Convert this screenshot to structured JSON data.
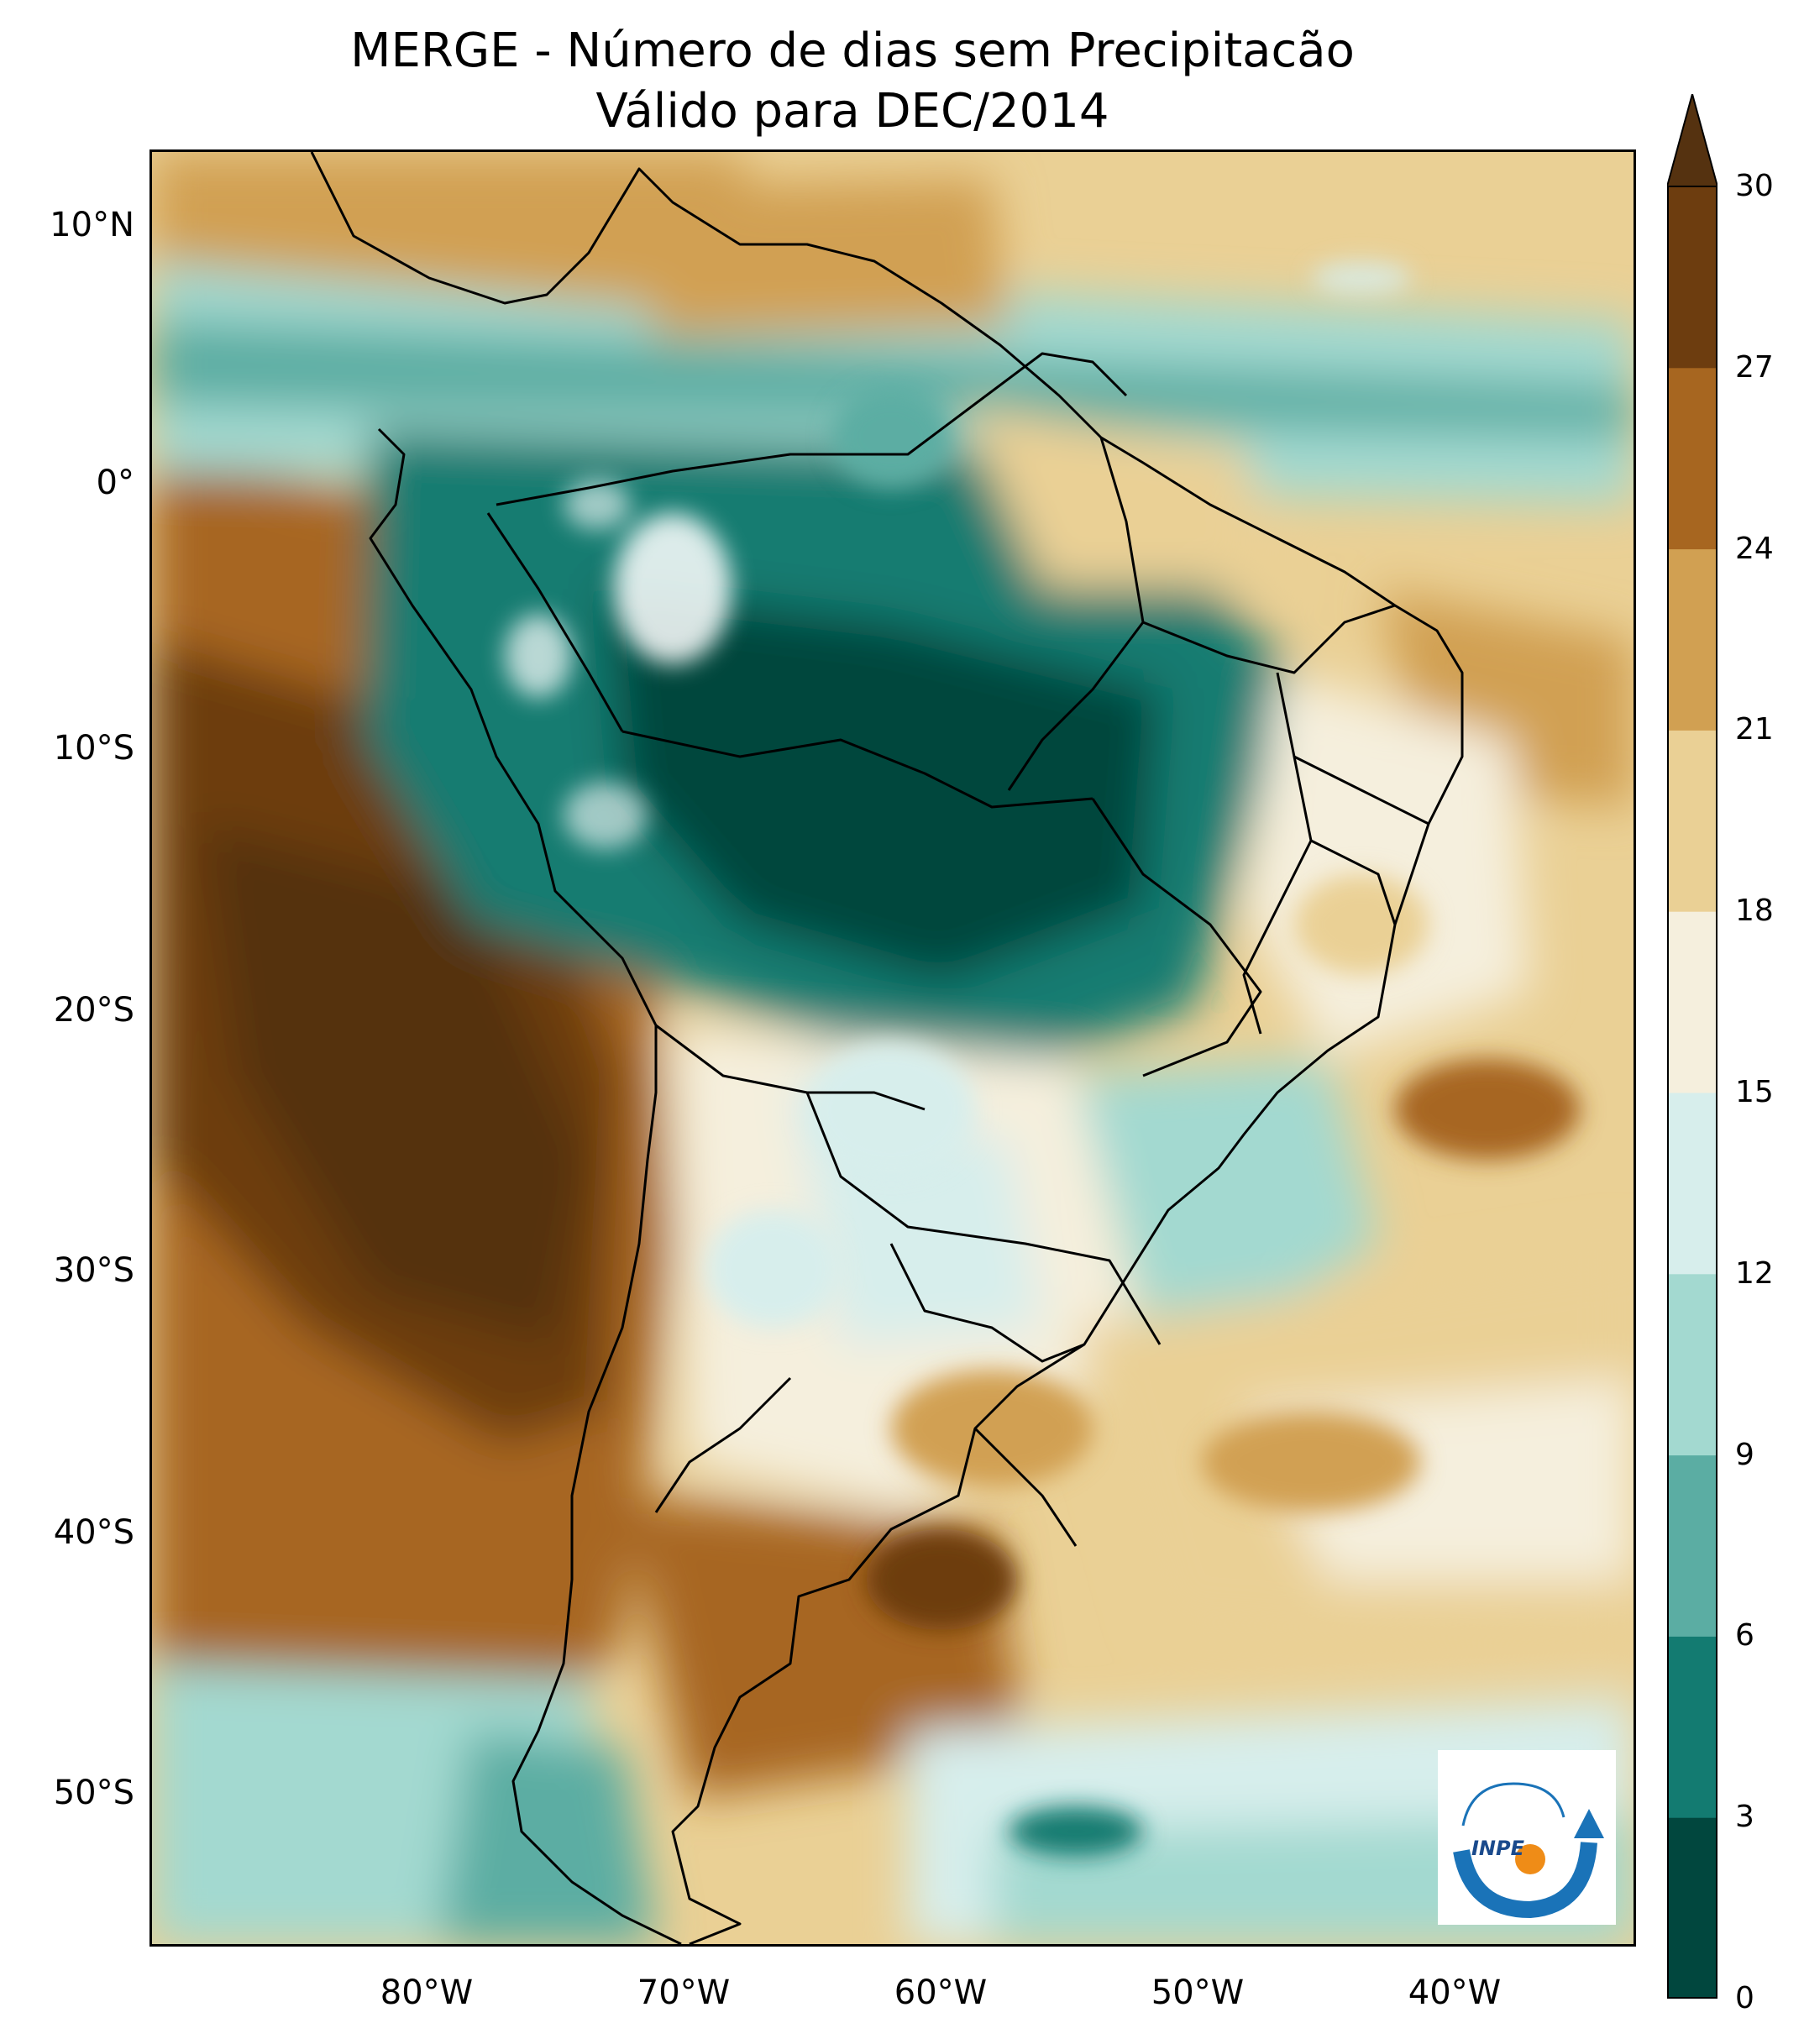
{
  "title": {
    "line1": "MERGE - Número de dias sem Precipitacão",
    "line2": "Válido para DEC/2014"
  },
  "map": {
    "region": "South America",
    "lon_range": [
      -90,
      -32
    ],
    "lat_range": [
      -56,
      13
    ]
  },
  "axes": {
    "lat_ticks": [
      "10°N",
      "0°",
      "10°S",
      "20°S",
      "30°S",
      "40°S",
      "50°S"
    ],
    "lon_ticks": [
      "80°W",
      "70°W",
      "60°W",
      "50°W",
      "40°W"
    ]
  },
  "colorbar": {
    "labels": [
      "0",
      "3",
      "6",
      "9",
      "12",
      "15",
      "18",
      "21",
      "24",
      "27",
      "30"
    ],
    "colors": [
      "#01473e",
      "#137b71",
      "#5bada3",
      "#a3d9d0",
      "#d7eeec",
      "#f5efdd",
      "#ead095",
      "#d1a052",
      "#a76620",
      "#6d3d0f"
    ],
    "extend_color": "#553210"
  },
  "logo": {
    "text": "INPE",
    "colors": {
      "arc": "#1a73b8",
      "dot": "#ef8c17"
    }
  }
}
